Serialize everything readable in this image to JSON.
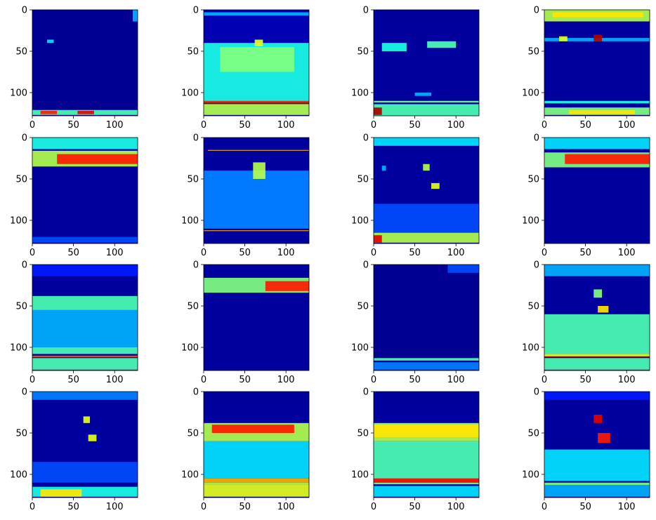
{
  "chart_data": {
    "type": "heatmap",
    "layout": {
      "rows": 4,
      "cols": 4
    },
    "colormap": "jet",
    "colormap_stops": [
      "#00007f",
      "#0000ff",
      "#007fff",
      "#00ffff",
      "#7fff7f",
      "#ffff00",
      "#ff7f00",
      "#ff0000",
      "#7f0000"
    ],
    "image_size": [
      128,
      128
    ],
    "xlim": [
      0,
      128
    ],
    "ylim": [
      128,
      0
    ],
    "xticks": [
      0,
      50,
      100
    ],
    "yticks": [
      0,
      50,
      100
    ],
    "xtick_labels": [
      "0",
      "50",
      "100"
    ],
    "ytick_labels": [
      "0",
      "50",
      "100"
    ],
    "panels": [
      {
        "id": 1,
        "bg": 0.02,
        "features": [
          {
            "y": [
              121,
              127
            ],
            "x": [
              0,
              128
            ],
            "v": 0.45
          },
          {
            "y": [
              122,
              126
            ],
            "x": [
              10,
              30
            ],
            "v": 0.85
          },
          {
            "y": [
              122,
              126
            ],
            "x": [
              55,
              75
            ],
            "v": 0.9
          },
          {
            "y": [
              36,
              40
            ],
            "x": [
              18,
              26
            ],
            "v": 0.35
          },
          {
            "y": [
              0,
              14
            ],
            "x": [
              122,
              128
            ],
            "v": 0.3
          }
        ]
      },
      {
        "id": 2,
        "bg": 0.05,
        "features": [
          {
            "y": [
              3,
              7
            ],
            "x": [
              0,
              128
            ],
            "v": 0.3
          },
          {
            "y": [
              40,
              115
            ],
            "x": [
              0,
              128
            ],
            "v": 0.4
          },
          {
            "y": [
              45,
              75
            ],
            "x": [
              20,
              110
            ],
            "v": 0.5
          },
          {
            "y": [
              36,
              44
            ],
            "x": [
              62,
              72
            ],
            "v": 0.6
          },
          {
            "y": [
              110,
              112
            ],
            "x": [
              0,
              128
            ],
            "v": 0.85
          },
          {
            "y": [
              112,
              114
            ],
            "x": [
              0,
              128
            ],
            "v": 1.0
          },
          {
            "y": [
              114,
              127
            ],
            "x": [
              0,
              128
            ],
            "v": 0.55
          }
        ]
      },
      {
        "id": 3,
        "bg": 0.03,
        "features": [
          {
            "y": [
              40,
              50
            ],
            "x": [
              10,
              40
            ],
            "v": 0.4
          },
          {
            "y": [
              38,
              46
            ],
            "x": [
              65,
              100
            ],
            "v": 0.45
          },
          {
            "y": [
              100,
              104
            ],
            "x": [
              50,
              70
            ],
            "v": 0.3
          },
          {
            "y": [
              110,
              112
            ],
            "x": [
              0,
              128
            ],
            "v": 0.5
          },
          {
            "y": [
              114,
              128
            ],
            "x": [
              0,
              128
            ],
            "v": 0.45
          },
          {
            "y": [
              118,
              127
            ],
            "x": [
              0,
              10
            ],
            "v": 0.95
          }
        ]
      },
      {
        "id": 4,
        "bg": 0.03,
        "features": [
          {
            "y": [
              0,
              14
            ],
            "x": [
              0,
              128
            ],
            "v": 0.55
          },
          {
            "y": [
              3,
              9
            ],
            "x": [
              10,
              120
            ],
            "v": 0.65
          },
          {
            "y": [
              34,
              38
            ],
            "x": [
              0,
              128
            ],
            "v": 0.3
          },
          {
            "y": [
              32,
              38
            ],
            "x": [
              18,
              28
            ],
            "v": 0.6
          },
          {
            "y": [
              30,
              38
            ],
            "x": [
              60,
              70
            ],
            "v": 0.95
          },
          {
            "y": [
              110,
              113
            ],
            "x": [
              0,
              128
            ],
            "v": 0.4
          },
          {
            "y": [
              118,
              127
            ],
            "x": [
              0,
              128
            ],
            "v": 0.5
          },
          {
            "y": [
              121,
              126
            ],
            "x": [
              30,
              110
            ],
            "v": 0.65
          }
        ]
      },
      {
        "id": 5,
        "bg": 0.03,
        "features": [
          {
            "y": [
              0,
              14
            ],
            "x": [
              0,
              128
            ],
            "v": 0.4
          },
          {
            "y": [
              16,
              35
            ],
            "x": [
              0,
              128
            ],
            "v": 0.55
          },
          {
            "y": [
              20,
              32
            ],
            "x": [
              30,
              128
            ],
            "v": 0.85
          },
          {
            "y": [
              120,
              127
            ],
            "x": [
              0,
              128
            ],
            "v": 0.2
          }
        ]
      },
      {
        "id": 6,
        "bg": 0.03,
        "features": [
          {
            "y": [
              15,
              16
            ],
            "x": [
              5,
              128
            ],
            "v": 0.7
          },
          {
            "y": [
              40,
              110
            ],
            "x": [
              0,
              128
            ],
            "v": 0.18
          },
          {
            "y": [
              40,
              110
            ],
            "x": [
              0,
              128
            ],
            "v": 0.25
          },
          {
            "y": [
              112,
              113
            ],
            "x": [
              0,
              128
            ],
            "v": 0.7
          },
          {
            "y": [
              30,
              50
            ],
            "x": [
              60,
              75
            ],
            "v": 0.55
          }
        ]
      },
      {
        "id": 7,
        "bg": 0.03,
        "features": [
          {
            "y": [
              0,
              10
            ],
            "x": [
              0,
              128
            ],
            "v": 0.35
          },
          {
            "y": [
              34,
              40
            ],
            "x": [
              10,
              15
            ],
            "v": 0.3
          },
          {
            "y": [
              32,
              40
            ],
            "x": [
              60,
              68
            ],
            "v": 0.55
          },
          {
            "y": [
              55,
              62
            ],
            "x": [
              70,
              80
            ],
            "v": 0.6
          },
          {
            "y": [
              80,
              115
            ],
            "x": [
              0,
              128
            ],
            "v": 0.2
          },
          {
            "y": [
              115,
              127
            ],
            "x": [
              0,
              128
            ],
            "v": 0.55
          },
          {
            "y": [
              118,
              127
            ],
            "x": [
              0,
              10
            ],
            "v": 0.9
          }
        ]
      },
      {
        "id": 8,
        "bg": 0.03,
        "features": [
          {
            "y": [
              0,
              14
            ],
            "x": [
              0,
              128
            ],
            "v": 0.35
          },
          {
            "y": [
              18,
              36
            ],
            "x": [
              0,
              128
            ],
            "v": 0.5
          },
          {
            "y": [
              20,
              32
            ],
            "x": [
              25,
              128
            ],
            "v": 0.85
          }
        ]
      },
      {
        "id": 9,
        "bg": 0.03,
        "features": [
          {
            "y": [
              0,
              14
            ],
            "x": [
              0,
              128
            ],
            "v": 0.15
          },
          {
            "y": [
              38,
              55
            ],
            "x": [
              0,
              128
            ],
            "v": 0.45
          },
          {
            "y": [
              55,
              100
            ],
            "x": [
              0,
              128
            ],
            "v": 0.3
          },
          {
            "y": [
              100,
              108
            ],
            "x": [
              0,
              128
            ],
            "v": 0.45
          },
          {
            "y": [
              110,
              112
            ],
            "x": [
              0,
              128
            ],
            "v": 0.8
          },
          {
            "y": [
              113,
              127
            ],
            "x": [
              0,
              128
            ],
            "v": 0.45
          }
        ]
      },
      {
        "id": 10,
        "bg": 0.03,
        "features": [
          {
            "y": [
              16,
              34
            ],
            "x": [
              0,
              128
            ],
            "v": 0.5
          },
          {
            "y": [
              20,
              32
            ],
            "x": [
              75,
              128
            ],
            "v": 0.85
          }
        ]
      },
      {
        "id": 11,
        "bg": 0.02,
        "features": [
          {
            "y": [
              0,
              10
            ],
            "x": [
              90,
              128
            ],
            "v": 0.2
          },
          {
            "y": [
              113,
              116
            ],
            "x": [
              0,
              128
            ],
            "v": 0.45
          },
          {
            "y": [
              118,
              127
            ],
            "x": [
              0,
              128
            ],
            "v": 0.25
          }
        ]
      },
      {
        "id": 12,
        "bg": 0.03,
        "features": [
          {
            "y": [
              0,
              14
            ],
            "x": [
              0,
              128
            ],
            "v": 0.3
          },
          {
            "y": [
              30,
              40
            ],
            "x": [
              60,
              70
            ],
            "v": 0.5
          },
          {
            "y": [
              50,
              58
            ],
            "x": [
              65,
              78
            ],
            "v": 0.65
          },
          {
            "y": [
              60,
              108
            ],
            "x": [
              0,
              128
            ],
            "v": 0.45
          },
          {
            "y": [
              108,
              111
            ],
            "x": [
              0,
              128
            ],
            "v": 0.6
          },
          {
            "y": [
              111,
              113
            ],
            "x": [
              0,
              128
            ],
            "v": 1.0
          },
          {
            "y": [
              113,
              127
            ],
            "x": [
              0,
              128
            ],
            "v": 0.45
          }
        ]
      },
      {
        "id": 13,
        "bg": 0.03,
        "features": [
          {
            "y": [
              0,
              10
            ],
            "x": [
              0,
              128
            ],
            "v": 0.25
          },
          {
            "y": [
              30,
              38
            ],
            "x": [
              62,
              70
            ],
            "v": 0.6
          },
          {
            "y": [
              52,
              60
            ],
            "x": [
              68,
              78
            ],
            "v": 0.6
          },
          {
            "y": [
              85,
              110
            ],
            "x": [
              0,
              128
            ],
            "v": 0.2
          },
          {
            "y": [
              115,
              127
            ],
            "x": [
              0,
              128
            ],
            "v": 0.4
          },
          {
            "y": [
              118,
              127
            ],
            "x": [
              10,
              60
            ],
            "v": 0.65
          }
        ]
      },
      {
        "id": 14,
        "bg": 0.03,
        "features": [
          {
            "y": [
              38,
              60
            ],
            "x": [
              0,
              128
            ],
            "v": 0.55
          },
          {
            "y": [
              40,
              50
            ],
            "x": [
              10,
              110
            ],
            "v": 0.85
          },
          {
            "y": [
              60,
              105
            ],
            "x": [
              0,
              128
            ],
            "v": 0.35
          },
          {
            "y": [
              105,
              110
            ],
            "x": [
              0,
              128
            ],
            "v": 0.7
          },
          {
            "y": [
              110,
              112
            ],
            "x": [
              0,
              128
            ],
            "v": 0.55
          },
          {
            "y": [
              112,
              127
            ],
            "x": [
              0,
              128
            ],
            "v": 0.6
          }
        ]
      },
      {
        "id": 15,
        "bg": 0.03,
        "features": [
          {
            "y": [
              38,
              60
            ],
            "x": [
              0,
              128
            ],
            "v": 0.55
          },
          {
            "y": [
              40,
              55
            ],
            "x": [
              0,
              128
            ],
            "v": 0.65
          },
          {
            "y": [
              60,
              105
            ],
            "x": [
              0,
              128
            ],
            "v": 0.45
          },
          {
            "y": [
              105,
              110
            ],
            "x": [
              0,
              128
            ],
            "v": 0.85
          },
          {
            "y": [
              110,
              112
            ],
            "x": [
              0,
              128
            ],
            "v": 0.5
          },
          {
            "y": [
              114,
              127
            ],
            "x": [
              0,
              128
            ],
            "v": 0.35
          }
        ]
      },
      {
        "id": 16,
        "bg": 0.03,
        "features": [
          {
            "y": [
              0,
              10
            ],
            "x": [
              0,
              128
            ],
            "v": 0.15
          },
          {
            "y": [
              28,
              38
            ],
            "x": [
              60,
              70
            ],
            "v": 0.9
          },
          {
            "y": [
              50,
              62
            ],
            "x": [
              65,
              80
            ],
            "v": 0.85
          },
          {
            "y": [
              70,
              108
            ],
            "x": [
              0,
              128
            ],
            "v": 0.35
          },
          {
            "y": [
              110,
              113
            ],
            "x": [
              0,
              128
            ],
            "v": 0.5
          },
          {
            "y": [
              113,
              127
            ],
            "x": [
              0,
              128
            ],
            "v": 0.3
          }
        ]
      }
    ]
  }
}
